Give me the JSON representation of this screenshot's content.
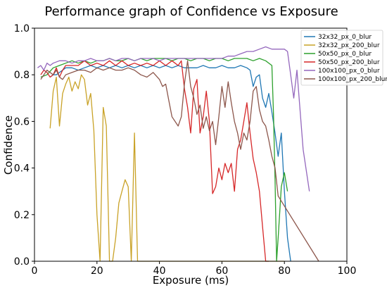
{
  "chart_data": {
    "type": "line",
    "title": "Performance graph of Confidence vs Exposure",
    "xlabel": "Exposure (ms)",
    "ylabel": "Confidence",
    "xlim": [
      0,
      100
    ],
    "ylim": [
      0,
      1.0
    ],
    "xticks": [
      0,
      20,
      40,
      60,
      80,
      100
    ],
    "yticks": [
      0.0,
      0.2,
      0.4,
      0.6,
      0.8,
      1.0
    ],
    "xtick_labels": [
      "0",
      "20",
      "40",
      "60",
      "80",
      "100"
    ],
    "ytick_labels": [
      "0.0",
      "0.2",
      "0.4",
      "0.6",
      "0.8",
      "1.0"
    ],
    "grid": false,
    "legend_position": "top-right",
    "series": [
      {
        "name": "32x32_px_0_blur",
        "color": "#1f77b4",
        "points": [
          [
            5,
            0.79
          ],
          [
            6,
            0.8
          ],
          [
            7,
            0.8
          ],
          [
            8,
            0.81
          ],
          [
            9,
            0.82
          ],
          [
            10,
            0.83
          ],
          [
            12,
            0.83
          ],
          [
            14,
            0.82
          ],
          [
            16,
            0.83
          ],
          [
            18,
            0.84
          ],
          [
            20,
            0.83
          ],
          [
            22,
            0.84
          ],
          [
            24,
            0.83
          ],
          [
            26,
            0.84
          ],
          [
            28,
            0.83
          ],
          [
            30,
            0.84
          ],
          [
            32,
            0.83
          ],
          [
            34,
            0.84
          ],
          [
            36,
            0.83
          ],
          [
            38,
            0.84
          ],
          [
            40,
            0.83
          ],
          [
            42,
            0.84
          ],
          [
            44,
            0.83
          ],
          [
            46,
            0.84
          ],
          [
            48,
            0.83
          ],
          [
            50,
            0.83
          ],
          [
            52,
            0.83
          ],
          [
            54,
            0.84
          ],
          [
            56,
            0.83
          ],
          [
            58,
            0.83
          ],
          [
            60,
            0.84
          ],
          [
            62,
            0.83
          ],
          [
            64,
            0.83
          ],
          [
            66,
            0.84
          ],
          [
            68,
            0.83
          ],
          [
            69,
            0.82
          ],
          [
            70,
            0.75
          ],
          [
            71,
            0.79
          ],
          [
            72,
            0.8
          ],
          [
            73,
            0.7
          ],
          [
            74,
            0.66
          ],
          [
            75,
            0.72
          ],
          [
            76,
            0.64
          ],
          [
            77,
            0.55
          ],
          [
            78,
            0.45
          ],
          [
            79,
            0.55
          ],
          [
            80,
            0.3
          ],
          [
            81,
            0.1
          ],
          [
            82,
            0.0
          ]
        ]
      },
      {
        "name": "32x32_px_200_blur",
        "color": "#c9a227",
        "points": [
          [
            5,
            0.57
          ],
          [
            6,
            0.73
          ],
          [
            7,
            0.79
          ],
          [
            8,
            0.58
          ],
          [
            9,
            0.72
          ],
          [
            10,
            0.76
          ],
          [
            11,
            0.79
          ],
          [
            12,
            0.73
          ],
          [
            13,
            0.77
          ],
          [
            14,
            0.74
          ],
          [
            15,
            0.8
          ],
          [
            16,
            0.78
          ],
          [
            17,
            0.67
          ],
          [
            18,
            0.72
          ],
          [
            19,
            0.56
          ],
          [
            20,
            0.2
          ],
          [
            21,
            0.0
          ],
          [
            22,
            0.66
          ],
          [
            23,
            0.58
          ],
          [
            24,
            0.0
          ],
          [
            25,
            0.0
          ],
          [
            26,
            0.1
          ],
          [
            27,
            0.25
          ],
          [
            28,
            0.3
          ],
          [
            29,
            0.35
          ],
          [
            30,
            0.32
          ],
          [
            31,
            0.0
          ],
          [
            32,
            0.55
          ],
          [
            33,
            0.0
          ],
          [
            34,
            0.0
          ],
          [
            40,
            0.0
          ],
          [
            50,
            0.0
          ],
          [
            60,
            0.0
          ],
          [
            70,
            0.0
          ],
          [
            80,
            0.0
          ]
        ]
      },
      {
        "name": "50x50_px_0_blur",
        "color": "#2ca02c",
        "points": [
          [
            2,
            0.79
          ],
          [
            4,
            0.8
          ],
          [
            6,
            0.83
          ],
          [
            8,
            0.84
          ],
          [
            10,
            0.85
          ],
          [
            12,
            0.86
          ],
          [
            14,
            0.85
          ],
          [
            16,
            0.86
          ],
          [
            18,
            0.85
          ],
          [
            20,
            0.86
          ],
          [
            22,
            0.86
          ],
          [
            24,
            0.87
          ],
          [
            26,
            0.86
          ],
          [
            28,
            0.86
          ],
          [
            30,
            0.87
          ],
          [
            32,
            0.86
          ],
          [
            34,
            0.87
          ],
          [
            36,
            0.86
          ],
          [
            38,
            0.87
          ],
          [
            40,
            0.87
          ],
          [
            42,
            0.87
          ],
          [
            44,
            0.86
          ],
          [
            46,
            0.87
          ],
          [
            48,
            0.87
          ],
          [
            50,
            0.86
          ],
          [
            52,
            0.87
          ],
          [
            54,
            0.87
          ],
          [
            56,
            0.86
          ],
          [
            58,
            0.87
          ],
          [
            60,
            0.87
          ],
          [
            62,
            0.86
          ],
          [
            64,
            0.87
          ],
          [
            66,
            0.87
          ],
          [
            68,
            0.87
          ],
          [
            70,
            0.86
          ],
          [
            72,
            0.87
          ],
          [
            74,
            0.86
          ],
          [
            76,
            0.84
          ],
          [
            76.5,
            0.63
          ],
          [
            77,
            0.35
          ],
          [
            77.5,
            0.0
          ],
          [
            78,
            0.1
          ],
          [
            79,
            0.32
          ],
          [
            80,
            0.38
          ],
          [
            81,
            0.3
          ]
        ]
      },
      {
        "name": "50x50_px_200_blur",
        "color": "#d62728",
        "points": [
          [
            2,
            0.8
          ],
          [
            3,
            0.82
          ],
          [
            4,
            0.81
          ],
          [
            5,
            0.79
          ],
          [
            6,
            0.8
          ],
          [
            7,
            0.83
          ],
          [
            8,
            0.79
          ],
          [
            9,
            0.82
          ],
          [
            10,
            0.84
          ],
          [
            12,
            0.84
          ],
          [
            14,
            0.84
          ],
          [
            16,
            0.86
          ],
          [
            18,
            0.84
          ],
          [
            20,
            0.85
          ],
          [
            22,
            0.84
          ],
          [
            24,
            0.86
          ],
          [
            26,
            0.84
          ],
          [
            28,
            0.86
          ],
          [
            30,
            0.84
          ],
          [
            32,
            0.85
          ],
          [
            34,
            0.84
          ],
          [
            36,
            0.85
          ],
          [
            38,
            0.84
          ],
          [
            40,
            0.86
          ],
          [
            42,
            0.84
          ],
          [
            44,
            0.86
          ],
          [
            46,
            0.84
          ],
          [
            47,
            0.86
          ],
          [
            48,
            0.74
          ],
          [
            49,
            0.66
          ],
          [
            50,
            0.55
          ],
          [
            51,
            0.74
          ],
          [
            52,
            0.78
          ],
          [
            53,
            0.55
          ],
          [
            54,
            0.62
          ],
          [
            55,
            0.73
          ],
          [
            56,
            0.6
          ],
          [
            57,
            0.29
          ],
          [
            58,
            0.32
          ],
          [
            59,
            0.4
          ],
          [
            60,
            0.35
          ],
          [
            61,
            0.42
          ],
          [
            62,
            0.38
          ],
          [
            63,
            0.42
          ],
          [
            64,
            0.3
          ],
          [
            65,
            0.48
          ],
          [
            66,
            0.52
          ],
          [
            67,
            0.6
          ],
          [
            68,
            0.68
          ],
          [
            69,
            0.55
          ],
          [
            70,
            0.44
          ],
          [
            71,
            0.38
          ],
          [
            72,
            0.3
          ],
          [
            73,
            0.15
          ],
          [
            74,
            0.0
          ],
          [
            75,
            0.0
          ]
        ]
      },
      {
        "name": "100x100_px_0_blur",
        "color": "#9467bd",
        "points": [
          [
            1,
            0.83
          ],
          [
            2,
            0.84
          ],
          [
            3,
            0.82
          ],
          [
            4,
            0.85
          ],
          [
            5,
            0.84
          ],
          [
            6,
            0.85
          ],
          [
            8,
            0.86
          ],
          [
            10,
            0.86
          ],
          [
            12,
            0.85
          ],
          [
            14,
            0.86
          ],
          [
            16,
            0.86
          ],
          [
            18,
            0.87
          ],
          [
            20,
            0.86
          ],
          [
            22,
            0.86
          ],
          [
            24,
            0.87
          ],
          [
            26,
            0.86
          ],
          [
            28,
            0.87
          ],
          [
            30,
            0.87
          ],
          [
            32,
            0.86
          ],
          [
            34,
            0.87
          ],
          [
            36,
            0.87
          ],
          [
            38,
            0.87
          ],
          [
            40,
            0.86
          ],
          [
            42,
            0.87
          ],
          [
            44,
            0.87
          ],
          [
            46,
            0.87
          ],
          [
            48,
            0.87
          ],
          [
            50,
            0.87
          ],
          [
            52,
            0.87
          ],
          [
            54,
            0.87
          ],
          [
            56,
            0.87
          ],
          [
            58,
            0.87
          ],
          [
            60,
            0.87
          ],
          [
            62,
            0.88
          ],
          [
            64,
            0.88
          ],
          [
            66,
            0.89
          ],
          [
            68,
            0.9
          ],
          [
            70,
            0.9
          ],
          [
            72,
            0.91
          ],
          [
            74,
            0.92
          ],
          [
            76,
            0.91
          ],
          [
            78,
            0.91
          ],
          [
            80,
            0.91
          ],
          [
            81,
            0.9
          ],
          [
            82,
            0.8
          ],
          [
            83,
            0.7
          ],
          [
            84,
            0.82
          ],
          [
            85,
            0.65
          ],
          [
            86,
            0.48
          ],
          [
            88,
            0.3
          ]
        ]
      },
      {
        "name": "100x100_px_200_blur",
        "color": "#8c564b",
        "points": [
          [
            2,
            0.78
          ],
          [
            3,
            0.8
          ],
          [
            4,
            0.82
          ],
          [
            5,
            0.81
          ],
          [
            6,
            0.8
          ],
          [
            7,
            0.82
          ],
          [
            8,
            0.79
          ],
          [
            9,
            0.78
          ],
          [
            10,
            0.8
          ],
          [
            12,
            0.81
          ],
          [
            14,
            0.82
          ],
          [
            16,
            0.82
          ],
          [
            18,
            0.81
          ],
          [
            20,
            0.83
          ],
          [
            22,
            0.82
          ],
          [
            24,
            0.83
          ],
          [
            26,
            0.82
          ],
          [
            28,
            0.82
          ],
          [
            30,
            0.83
          ],
          [
            32,
            0.82
          ],
          [
            34,
            0.8
          ],
          [
            36,
            0.79
          ],
          [
            38,
            0.81
          ],
          [
            40,
            0.78
          ],
          [
            41,
            0.75
          ],
          [
            42,
            0.76
          ],
          [
            43,
            0.69
          ],
          [
            44,
            0.62
          ],
          [
            45,
            0.6
          ],
          [
            46,
            0.58
          ],
          [
            47,
            0.62
          ],
          [
            48,
            0.76
          ],
          [
            49,
            0.86
          ],
          [
            50,
            0.75
          ],
          [
            51,
            0.7
          ],
          [
            52,
            0.63
          ],
          [
            53,
            0.67
          ],
          [
            54,
            0.57
          ],
          [
            55,
            0.62
          ],
          [
            56,
            0.56
          ],
          [
            57,
            0.6
          ],
          [
            58,
            0.5
          ],
          [
            59,
            0.62
          ],
          [
            60,
            0.75
          ],
          [
            61,
            0.66
          ],
          [
            62,
            0.77
          ],
          [
            63,
            0.68
          ],
          [
            64,
            0.6
          ],
          [
            65,
            0.55
          ],
          [
            66,
            0.48
          ],
          [
            67,
            0.55
          ],
          [
            68,
            0.52
          ],
          [
            69,
            0.6
          ],
          [
            70,
            0.73
          ],
          [
            71,
            0.75
          ],
          [
            72,
            0.65
          ],
          [
            73,
            0.6
          ],
          [
            74,
            0.58
          ],
          [
            75,
            0.52
          ],
          [
            76,
            0.45
          ],
          [
            77,
            0.4
          ],
          [
            78,
            0.28
          ],
          [
            91,
            0.0
          ]
        ]
      }
    ]
  }
}
